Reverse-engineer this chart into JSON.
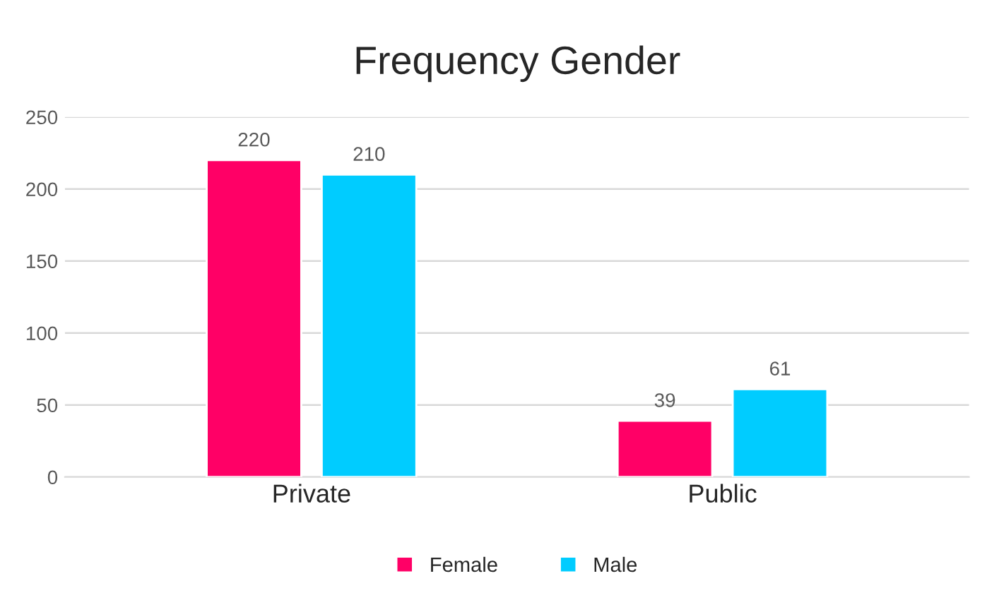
{
  "chart_data": {
    "type": "bar",
    "title": "Frequency Gender",
    "categories": [
      "Private",
      "Public"
    ],
    "series": [
      {
        "name": "Female",
        "color": "#ff0066",
        "values": [
          220,
          39
        ]
      },
      {
        "name": "Male",
        "color": "#00ccff",
        "values": [
          210,
          61
        ]
      }
    ],
    "ylim": [
      0,
      250
    ],
    "yticks": [
      0,
      50,
      100,
      150,
      200,
      250
    ],
    "grid": "y",
    "legend": "bottom",
    "data_labels": true
  }
}
